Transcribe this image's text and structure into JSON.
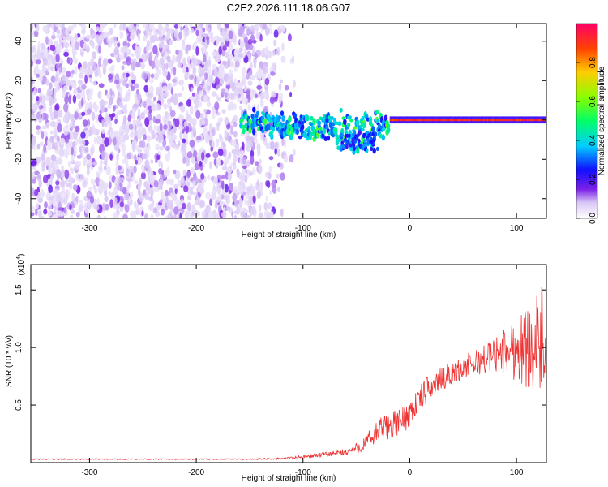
{
  "page_title": "C2E2.2026.111.18.06.G07",
  "chart_data": [
    {
      "type": "heatmap",
      "title": "C2E2.2026.111.18.06.G07",
      "xlabel": "Height of straight line (km)",
      "ylabel": "Frequency (Hz)",
      "xlim": [
        -355,
        128
      ],
      "ylim": [
        -50,
        49
      ],
      "xticks": [
        -300,
        -200,
        -100,
        0,
        100
      ],
      "xtick_labels": [
        "-300",
        "-200",
        "-100",
        "0",
        "100"
      ],
      "yticks": [
        -40,
        -20,
        0,
        20,
        40
      ],
      "ytick_labels": [
        "-40",
        "-20",
        "0",
        "20",
        "40"
      ],
      "colorbar": {
        "label": "Normalized spectral amplitude",
        "range": [
          0,
          1
        ],
        "ticks": [
          0,
          0.2,
          0.4,
          0.6,
          0.8
        ],
        "tick_labels": [
          "0.0",
          "0.2",
          "0.4",
          "0.6",
          "0.8"
        ]
      },
      "features": {
        "noise_region_x": [
          -355,
          -110
        ],
        "noise_amplitude": 0.15,
        "signal_start_x": -158,
        "signal_line_freq": 0,
        "dip_feature": {
          "x_range": [
            -70,
            -30
          ],
          "freq_min": -15
        },
        "max_amplitude_region_x": [
          -20,
          128
        ]
      }
    },
    {
      "type": "line",
      "xlabel": "Height of straight line (km)",
      "ylabel": "SNR (10 * v/v)",
      "exponent_label": "(x10",
      "exponent_power": "4",
      "exponent_close": ")",
      "xlim": [
        -355,
        128
      ],
      "ylim": [
        0,
        1.72
      ],
      "xticks": [
        -300,
        -200,
        -100,
        0,
        100
      ],
      "xtick_labels": [
        "-300",
        "-200",
        "-100",
        "0",
        "100"
      ],
      "yticks": [
        0.5,
        1.0,
        1.5
      ],
      "ytick_labels": [
        "0.5",
        "1.0",
        "1.5"
      ],
      "color": "#ee3333",
      "series": [
        {
          "x": [
            -355,
            -150,
            -120,
            -100,
            -80,
            -60,
            -45,
            -35,
            -25,
            -15,
            -5,
            5,
            15,
            25,
            35,
            45,
            55,
            65,
            75,
            85,
            95,
            105,
            115,
            125
          ],
          "values": [
            0.03,
            0.03,
            0.035,
            0.05,
            0.07,
            0.09,
            0.14,
            0.22,
            0.3,
            0.33,
            0.38,
            0.5,
            0.62,
            0.7,
            0.75,
            0.8,
            0.84,
            0.88,
            0.92,
            0.96,
            0.98,
            1.0,
            1.02,
            1.05
          ],
          "noise": [
            0.005,
            0.005,
            0.008,
            0.015,
            0.02,
            0.03,
            0.06,
            0.1,
            0.12,
            0.12,
            0.12,
            0.12,
            0.12,
            0.1,
            0.1,
            0.1,
            0.11,
            0.12,
            0.14,
            0.18,
            0.25,
            0.33,
            0.42,
            0.5
          ]
        }
      ]
    }
  ]
}
